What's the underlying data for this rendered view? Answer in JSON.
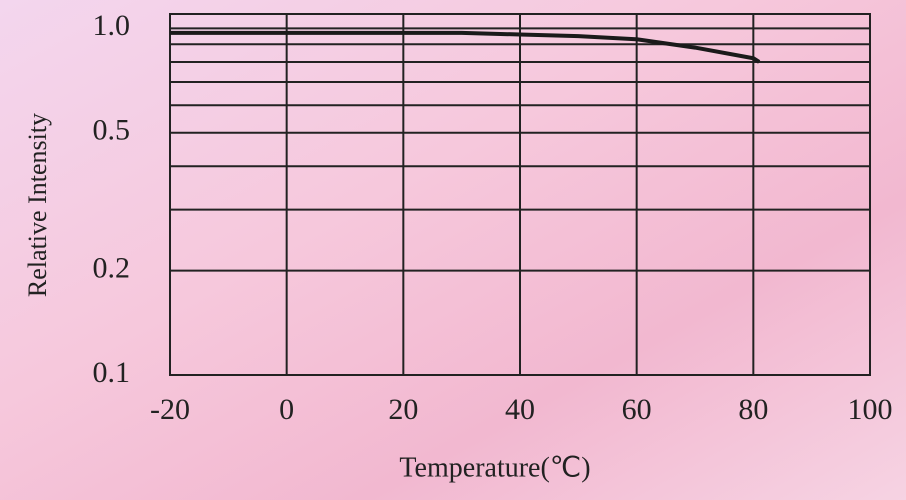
{
  "chart_data": {
    "type": "line",
    "x_label": "Temperature(℃)",
    "y_label": "Relative Intensity",
    "xlim": [
      -20,
      100
    ],
    "xticks": [
      -20,
      0,
      20,
      40,
      60,
      80,
      100
    ],
    "ylim": [
      0.1,
      1.1
    ],
    "y_log": true,
    "yticks": [
      0.1,
      0.2,
      0.5,
      {
        "value": 1,
        "label": "1.0"
      }
    ],
    "minor_yticks": [
      0.3,
      0.4,
      0.6,
      0.7,
      0.8,
      0.9
    ],
    "grid": true,
    "series": [
      {
        "color": "#1a1a1a",
        "x": [
          -20,
          0,
          20,
          30,
          40,
          50,
          60,
          70,
          80,
          81
        ],
        "values": [
          0.97,
          0.97,
          0.97,
          0.97,
          0.96,
          0.95,
          0.93,
          0.88,
          0.82,
          0.8
        ]
      }
    ]
  }
}
